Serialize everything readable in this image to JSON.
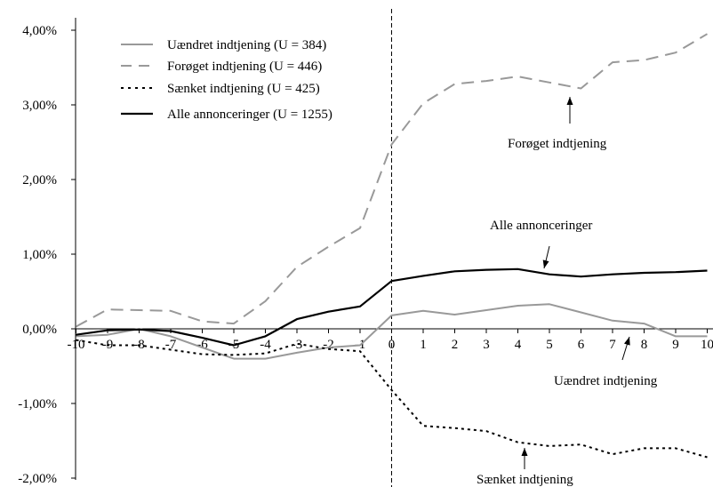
{
  "chart_data": {
    "type": "line",
    "x": [
      -10,
      -9,
      -8,
      -7,
      -6,
      -5,
      -4,
      -3,
      -2,
      -1,
      0,
      1,
      2,
      3,
      4,
      5,
      6,
      7,
      8,
      9,
      10
    ],
    "x_tick_labels": [
      "-10",
      "-9",
      "-8",
      "-7",
      "-6",
      "-5",
      "-4",
      "-3",
      "-2",
      "-1",
      "0",
      "1",
      "2",
      "3",
      "4",
      "5",
      "6",
      "7",
      "8",
      "9",
      "10"
    ],
    "y_tick_labels": [
      "4,00%",
      "3,00%",
      "2,00%",
      "1,00%",
      "0,00%",
      "-1,00%",
      "-2,00%"
    ],
    "y_ticks": [
      4,
      3,
      2,
      1,
      0,
      -1,
      -2
    ],
    "ylim": [
      -2,
      4
    ],
    "xlim": [
      -10,
      10
    ],
    "vertical_reference_x": 0,
    "grid": false,
    "legend_position": "top-left",
    "series": [
      {
        "name": "Uændret indtjening (U = 384)",
        "style": "solid",
        "color": "#999999",
        "values": [
          -0.1,
          -0.08,
          0.0,
          -0.1,
          -0.25,
          -0.4,
          -0.4,
          -0.32,
          -0.25,
          -0.22,
          0.18,
          0.24,
          0.19,
          0.25,
          0.31,
          0.33,
          0.22,
          0.11,
          0.07,
          -0.1,
          -0.1
        ]
      },
      {
        "name": "Forøget indtjening (U = 446)",
        "style": "dashed",
        "color": "#999999",
        "values": [
          0.03,
          0.26,
          0.25,
          0.24,
          0.1,
          0.07,
          0.37,
          0.83,
          1.1,
          1.35,
          2.47,
          3.02,
          3.28,
          3.32,
          3.38,
          3.3,
          3.22,
          3.57,
          3.6,
          3.7,
          3.95
        ]
      },
      {
        "name": "Sænket indtjening (U = 425)",
        "style": "dotted",
        "color": "#000000",
        "values": [
          -0.15,
          -0.22,
          -0.22,
          -0.28,
          -0.34,
          -0.35,
          -0.33,
          -0.2,
          -0.27,
          -0.3,
          -0.82,
          -1.3,
          -1.33,
          -1.37,
          -1.52,
          -1.57,
          -1.55,
          -1.68,
          -1.6,
          -1.6,
          -1.72
        ]
      },
      {
        "name": "Alle annonceringer (U = 1255)",
        "style": "solid",
        "color": "#000000",
        "values": [
          -0.08,
          -0.02,
          -0.01,
          -0.03,
          -0.12,
          -0.22,
          -0.1,
          0.13,
          0.23,
          0.3,
          0.64,
          0.71,
          0.77,
          0.79,
          0.8,
          0.73,
          0.7,
          0.73,
          0.75,
          0.76,
          0.78
        ]
      }
    ],
    "annotations": [
      {
        "text": "Forøget indtjening",
        "points_to": {
          "x": 6,
          "y": 3.22
        }
      },
      {
        "text": "Alle annonceringer",
        "points_to": {
          "x": 4.5,
          "y": 0.77
        }
      },
      {
        "text": "Uændret indtjening",
        "points_to": {
          "x": 7.5,
          "y": 0.07
        }
      },
      {
        "text": "Sænket indtjening",
        "points_to": {
          "x": 5.8,
          "y": -1.55
        }
      }
    ]
  }
}
